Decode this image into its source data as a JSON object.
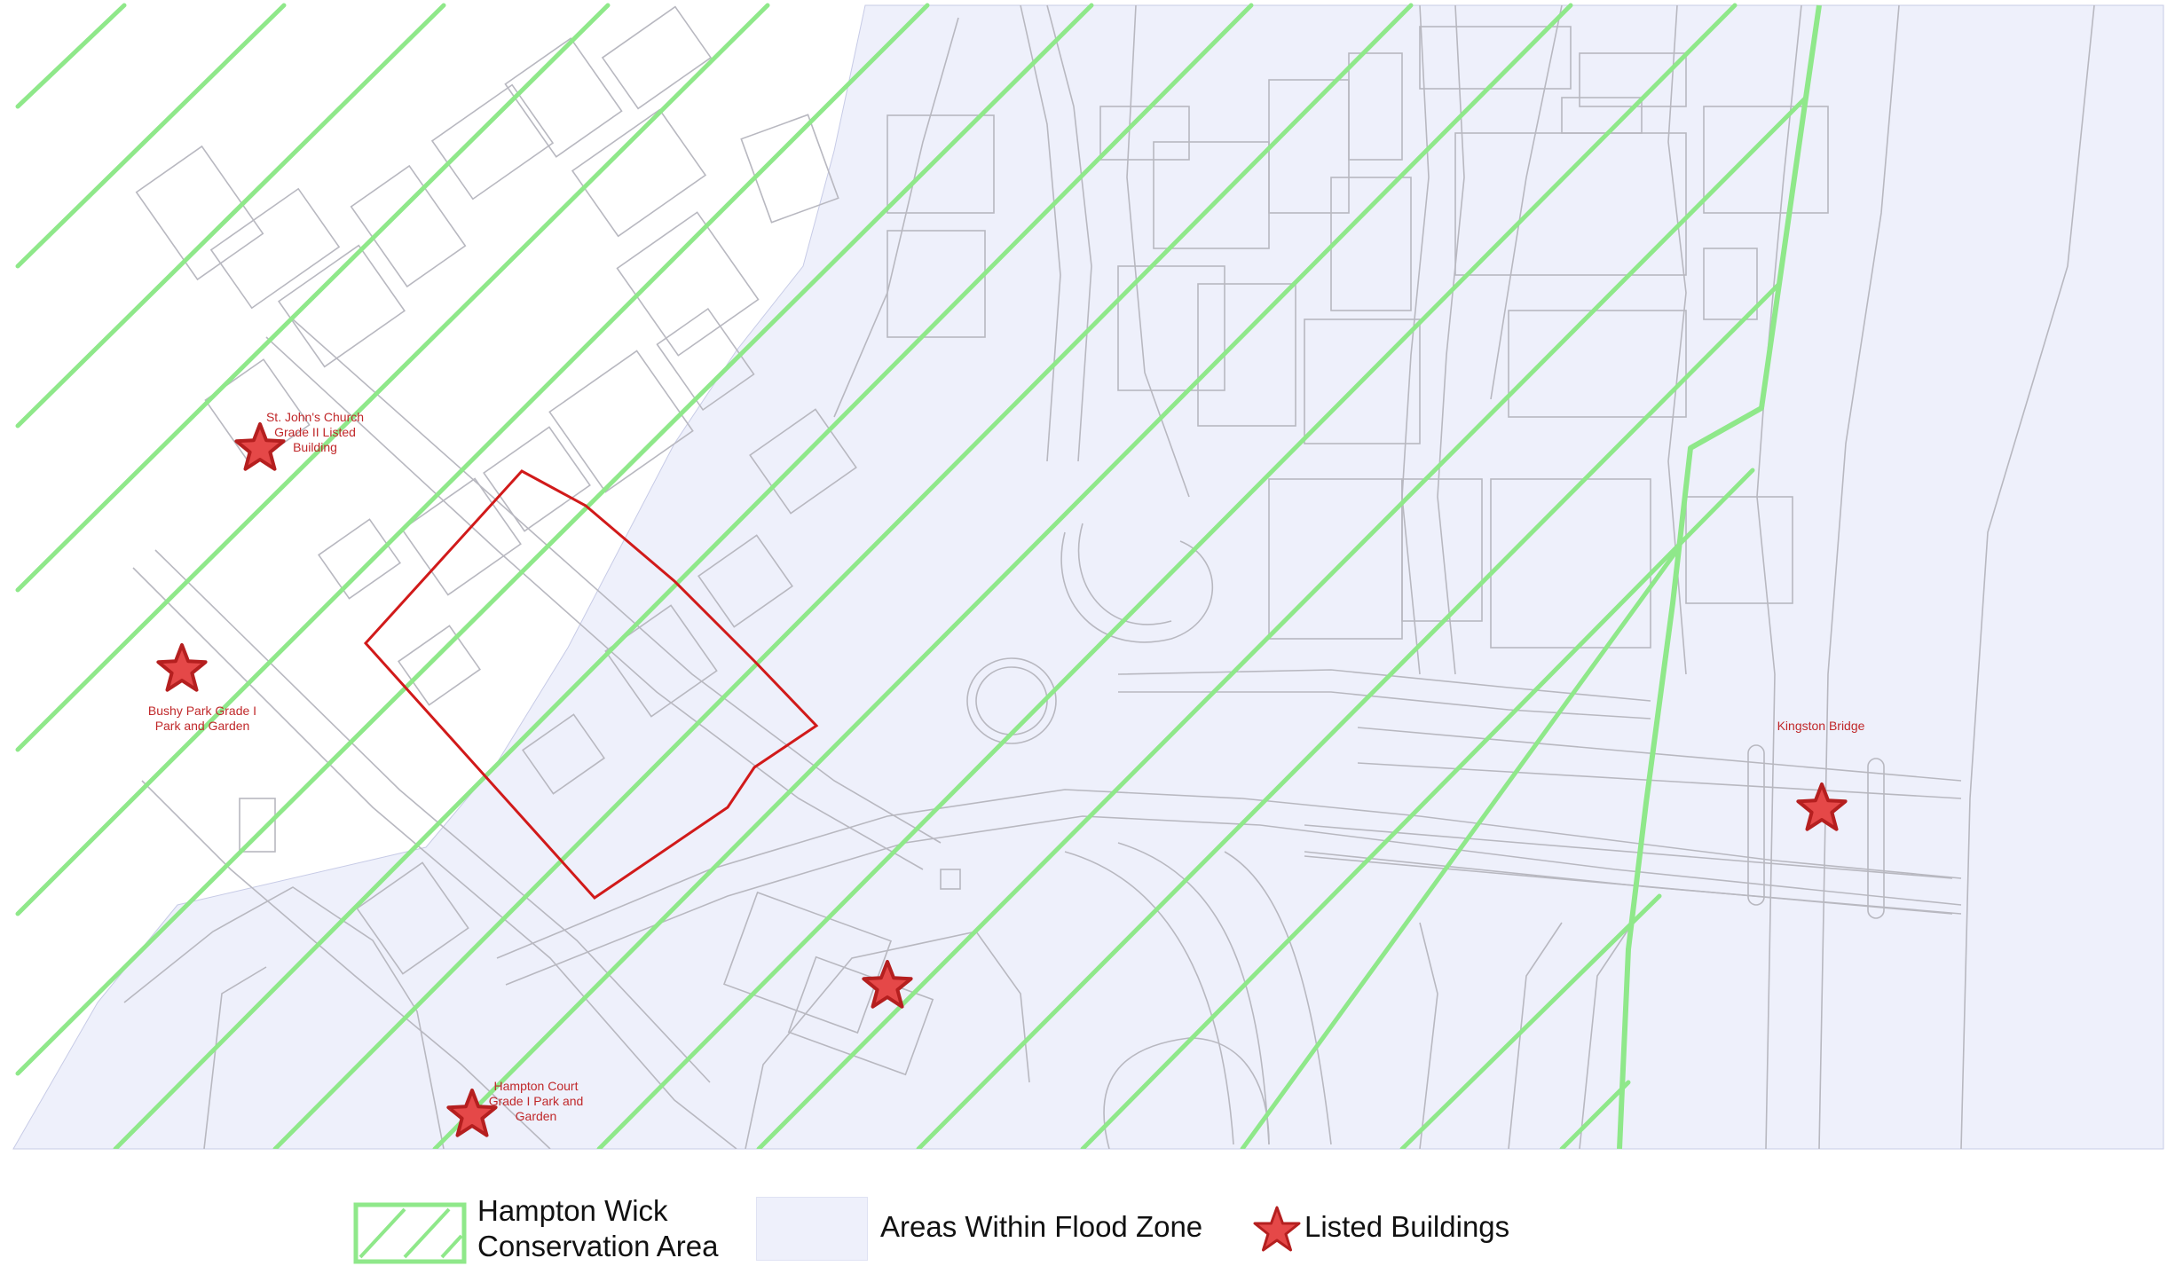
{
  "map": {
    "labels": {
      "st_johns": [
        "St. John's Church",
        "Grade II Listed",
        "Building"
      ],
      "bushy_park": [
        "Bushy Park Grade I",
        "Park and Garden"
      ],
      "hampton_court": [
        "Hampton Court",
        "Grade I Park and",
        "Garden"
      ],
      "kingston_bridge": [
        "Kingston Bridge"
      ]
    },
    "colors": {
      "flood_fill": "#eef0fb",
      "hatch": "#8fe88a",
      "boundary": "#d11a1a",
      "star_fill": "#e54848",
      "star_stroke": "#b51f1f",
      "label_text": "#c0282a",
      "basemap_line": "#b8b8c0"
    }
  },
  "legend": {
    "conservation_line1": "Hampton Wick",
    "conservation_line2": "Conservation Area",
    "flood_zone": "Areas Within Flood Zone",
    "listed_buildings": "Listed Buildings"
  }
}
